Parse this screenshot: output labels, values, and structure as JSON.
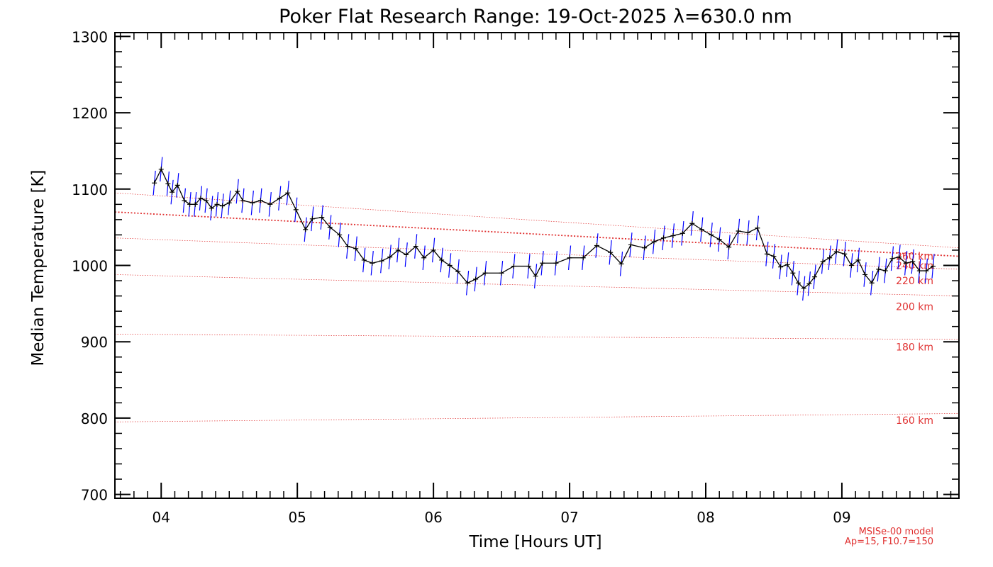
{
  "chart_data": {
    "type": "line",
    "title": "Poker Flat Research Range: 19-Oct-2025 λ=630.0 nm",
    "xlabel": "Time [Hours UT]",
    "ylabel": "Median Temperature [K]",
    "xlim": [
      3.66,
      9.86
    ],
    "ylim": [
      695,
      1305
    ],
    "x_ticks": [
      4,
      5,
      6,
      7,
      8,
      9
    ],
    "x_tick_labels": [
      "04",
      "05",
      "06",
      "07",
      "08",
      "09"
    ],
    "y_ticks": [
      700,
      800,
      900,
      1000,
      1100,
      1200,
      1300
    ],
    "y_tick_labels": [
      "700",
      "800",
      "900",
      "1000",
      "1100",
      "1200",
      "1300"
    ],
    "grid": false,
    "colors": {
      "data_line": "#000000",
      "error_bars": "#0000ff",
      "model": "#e03030"
    },
    "series": [
      {
        "values": [
          [
            3.95,
            1108
          ],
          [
            4.0,
            1126
          ],
          [
            4.05,
            1107
          ],
          [
            4.08,
            1096
          ],
          [
            4.12,
            1105
          ],
          [
            4.17,
            1085
          ],
          [
            4.21,
            1080
          ],
          [
            4.25,
            1080
          ],
          [
            4.29,
            1088
          ],
          [
            4.33,
            1085
          ],
          [
            4.37,
            1075
          ],
          [
            4.41,
            1080
          ],
          [
            4.45,
            1078
          ],
          [
            4.5,
            1082
          ],
          [
            4.56,
            1097
          ],
          [
            4.6,
            1085
          ],
          [
            4.67,
            1082
          ],
          [
            4.73,
            1085
          ],
          [
            4.8,
            1080
          ],
          [
            4.87,
            1088
          ],
          [
            4.93,
            1095
          ],
          [
            4.99,
            1073
          ],
          [
            5.06,
            1047
          ],
          [
            5.11,
            1061
          ],
          [
            5.18,
            1063
          ],
          [
            5.24,
            1050
          ],
          [
            5.31,
            1040
          ],
          [
            5.37,
            1025
          ],
          [
            5.43,
            1022
          ],
          [
            5.49,
            1007
          ],
          [
            5.55,
            1003
          ],
          [
            5.62,
            1006
          ],
          [
            5.68,
            1011
          ],
          [
            5.74,
            1020
          ],
          [
            5.8,
            1014
          ],
          [
            5.87,
            1025
          ],
          [
            5.93,
            1010
          ],
          [
            6.0,
            1020
          ],
          [
            6.06,
            1007
          ],
          [
            6.12,
            1000
          ],
          [
            6.18,
            992
          ],
          [
            6.25,
            977
          ],
          [
            6.31,
            982
          ],
          [
            6.38,
            990
          ],
          [
            6.5,
            990
          ],
          [
            6.59,
            999
          ],
          [
            6.7,
            999
          ],
          [
            6.75,
            986
          ],
          [
            6.8,
            1003
          ],
          [
            6.9,
            1003
          ],
          [
            7.0,
            1010
          ],
          [
            7.1,
            1010
          ],
          [
            7.2,
            1026
          ],
          [
            7.3,
            1017
          ],
          [
            7.38,
            1002
          ],
          [
            7.45,
            1027
          ],
          [
            7.55,
            1023
          ],
          [
            7.62,
            1031
          ],
          [
            7.69,
            1036
          ],
          [
            7.76,
            1039
          ],
          [
            7.83,
            1042
          ],
          [
            7.9,
            1055
          ],
          [
            7.97,
            1047
          ],
          [
            8.04,
            1040
          ],
          [
            8.1,
            1034
          ],
          [
            8.17,
            1024
          ],
          [
            8.24,
            1045
          ],
          [
            8.31,
            1043
          ],
          [
            8.38,
            1049
          ],
          [
            8.45,
            1015
          ],
          [
            8.5,
            1012
          ],
          [
            8.55,
            998
          ],
          [
            8.6,
            1001
          ],
          [
            8.64,
            990
          ],
          [
            8.68,
            977
          ],
          [
            8.72,
            970
          ],
          [
            8.76,
            976
          ],
          [
            8.8,
            985
          ],
          [
            8.86,
            1005
          ],
          [
            8.91,
            1010
          ],
          [
            8.96,
            1018
          ],
          [
            9.02,
            1015
          ],
          [
            9.07,
            1000
          ],
          [
            9.12,
            1007
          ],
          [
            9.17,
            988
          ],
          [
            9.22,
            977
          ],
          [
            9.27,
            995
          ],
          [
            9.32,
            993
          ],
          [
            9.37,
            1009
          ],
          [
            9.42,
            1011
          ],
          [
            9.47,
            1003
          ],
          [
            9.52,
            1005
          ],
          [
            9.57,
            993
          ],
          [
            9.62,
            993
          ],
          [
            9.67,
            999
          ]
        ],
        "error": 16
      }
    ],
    "model_curves": [
      {
        "label": "160 km",
        "values": [
          [
            3.66,
            795
          ],
          [
            9.86,
            806
          ]
        ],
        "label_y": 797,
        "width": 0.7,
        "dash": "1.5,2"
      },
      {
        "label": "180 km",
        "values": [
          [
            3.66,
            910
          ],
          [
            9.86,
            903
          ]
        ],
        "label_y": 893,
        "width": 0.7,
        "dash": "1.5,2"
      },
      {
        "label": "200 km",
        "values": [
          [
            3.66,
            988
          ],
          [
            9.86,
            960
          ]
        ],
        "label_y": 946,
        "width": 0.7,
        "dash": "1.5,2"
      },
      {
        "label": "220 km",
        "values": [
          [
            3.66,
            1036
          ],
          [
            9.86,
            995
          ]
        ],
        "label_y": 980,
        "width": 0.7,
        "dash": "1.5,2"
      },
      {
        "label": "240 km",
        "values": [
          [
            3.66,
            1070
          ],
          [
            9.86,
            1012
          ]
        ],
        "label_y": 1000,
        "width": 1.8,
        "dash": "2,2.5"
      },
      {
        "label": "260 km",
        "values": [
          [
            3.66,
            1095
          ],
          [
            9.86,
            1023
          ]
        ],
        "label_y": 1012,
        "width": 0.7,
        "dash": "1.5,2"
      }
    ],
    "annotations": [
      "MSISe-00 model",
      "Ap=15, F10.7=150"
    ]
  }
}
